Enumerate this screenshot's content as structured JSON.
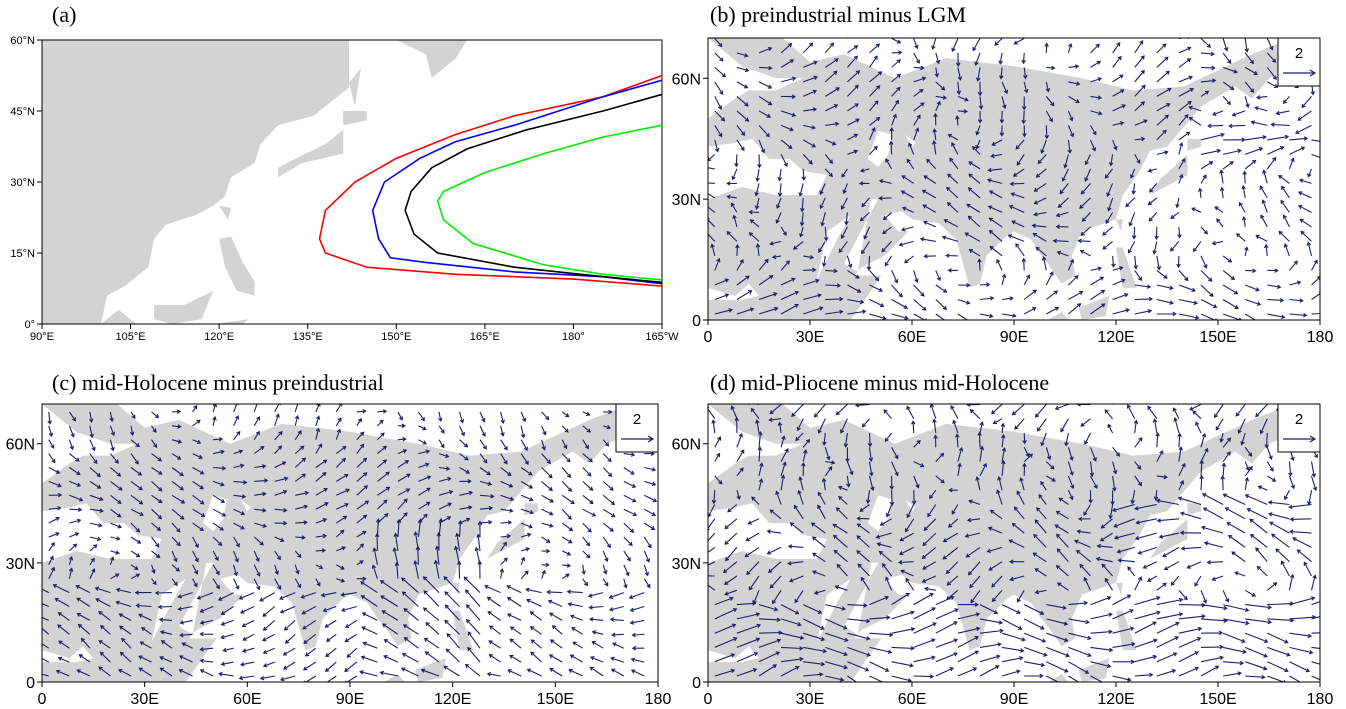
{
  "panels": {
    "a": {
      "title": "(a)"
    },
    "b": {
      "title": "(b) preindustrial minus LGM",
      "ref_vector_label": "2"
    },
    "c": {
      "title": "(c) mid-Holocene minus preindustrial",
      "ref_vector_label": "2"
    },
    "d": {
      "title": "(d) mid-Pliocene minus mid-Holocene",
      "ref_vector_label": "2"
    }
  },
  "colors": {
    "land": "#d3d3d3",
    "vector": "#1c1f6e",
    "red": "#ff0000",
    "blue": "#0000ff",
    "black": "#000000",
    "green": "#00ee00"
  },
  "chart_data": [
    {
      "type": "line",
      "panel": "a",
      "title": "(a)",
      "x_ticks": [
        "90°E",
        "105°E",
        "120°E",
        "135°E",
        "150°E",
        "165°E",
        "180°",
        "165°W"
      ],
      "y_ticks": [
        "0°",
        "15°N",
        "30°N",
        "45°N",
        "60°N"
      ],
      "xlim": [
        90,
        195
      ],
      "ylim": [
        0,
        60
      ],
      "series": [
        {
          "color": "red",
          "points": [
            [
              195,
              52.5
            ],
            [
              185,
              48
            ],
            [
              170,
              44
            ],
            [
              160,
              40
            ],
            [
              150,
              35
            ],
            [
              143,
              30
            ],
            [
              138,
              24
            ],
            [
              137,
              18
            ],
            [
              138,
              15
            ],
            [
              145,
              12
            ],
            [
              160,
              10.5
            ],
            [
              180,
              9.5
            ],
            [
              195,
              8
            ]
          ]
        },
        {
          "color": "blue",
          "points": [
            [
              195,
              51.5
            ],
            [
              185,
              48
            ],
            [
              170,
              42
            ],
            [
              160,
              38.5
            ],
            [
              154,
              35
            ],
            [
              148,
              30
            ],
            [
              146,
              24
            ],
            [
              147,
              18
            ],
            [
              149,
              14
            ],
            [
              155,
              13
            ],
            [
              170,
              11
            ],
            [
              185,
              10
            ],
            [
              195,
              8.5
            ]
          ]
        },
        {
          "color": "black",
          "points": [
            [
              195,
              48.5
            ],
            [
              185,
              45
            ],
            [
              172,
              41
            ],
            [
              162,
              37
            ],
            [
              156,
              33
            ],
            [
              152.5,
              28
            ],
            [
              151.5,
              24
            ],
            [
              153,
              19
            ],
            [
              157,
              15
            ],
            [
              170,
              12
            ],
            [
              185,
              10
            ],
            [
              195,
              8.8
            ]
          ]
        },
        {
          "color": "green",
          "points": [
            [
              195,
              42
            ],
            [
              185,
              39.5
            ],
            [
              175,
              36
            ],
            [
              165,
              32
            ],
            [
              158,
              28
            ],
            [
              157,
              26
            ],
            [
              158,
              22
            ],
            [
              163,
              17
            ],
            [
              175,
              12.5
            ],
            [
              185,
              10.5
            ],
            [
              195,
              9.3
            ]
          ]
        }
      ]
    },
    {
      "type": "vector",
      "panel": "b",
      "title": "(b) preindustrial minus LGM",
      "x_ticks": [
        "0",
        "30E",
        "60E",
        "90E",
        "120E",
        "150E",
        "180"
      ],
      "y_ticks": [
        "0",
        "30N",
        "60N"
      ],
      "xlim": [
        0,
        180
      ],
      "ylim": [
        0,
        70
      ],
      "reference_vector": 2
    },
    {
      "type": "vector",
      "panel": "c",
      "title": "(c) mid-Holocene minus preindustrial",
      "x_ticks": [
        "0",
        "30E",
        "60E",
        "90E",
        "120E",
        "150E",
        "180"
      ],
      "y_ticks": [
        "0",
        "30N",
        "60N"
      ],
      "xlim": [
        0,
        180
      ],
      "ylim": [
        0,
        70
      ],
      "reference_vector": 2
    },
    {
      "type": "vector",
      "panel": "d",
      "title": "(d) mid-Pliocene minus mid-Holocene",
      "x_ticks": [
        "0",
        "30E",
        "60E",
        "90E",
        "120E",
        "150E",
        "180"
      ],
      "y_ticks": [
        "0",
        "30N",
        "60N"
      ],
      "xlim": [
        0,
        180
      ],
      "ylim": [
        0,
        70
      ],
      "reference_vector": 2
    }
  ]
}
